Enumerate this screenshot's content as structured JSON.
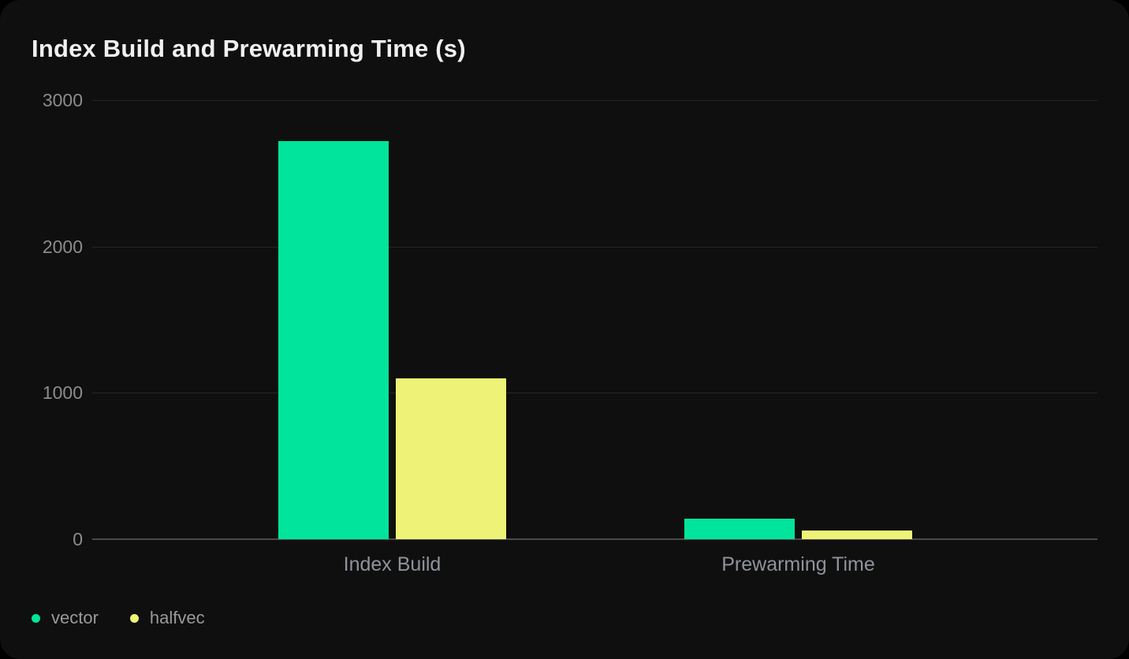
{
  "chart_data": {
    "type": "bar",
    "title": "Index Build and Prewarming Time (s)",
    "categories": [
      "Index Build",
      "Prewarming Time"
    ],
    "series": [
      {
        "name": "vector",
        "color": "#00E49B",
        "values": [
          2720,
          140
        ]
      },
      {
        "name": "halfvec",
        "color": "#EEF276",
        "values": [
          1100,
          60
        ]
      }
    ],
    "xlabel": "",
    "ylabel": "",
    "ylim": [
      0,
      3000
    ],
    "yticks": [
      0,
      1000,
      2000,
      3000
    ],
    "grid": true,
    "legend_position": "bottom-left"
  },
  "colors": {
    "page_background": "#000000",
    "card_background": "#0F0F0F",
    "gridline": "#262626",
    "zero_line": "#4A4A4A",
    "tick_label": "#8C8C8C",
    "category_label": "#8F939B",
    "legend_label": "#9A9A9A",
    "title": "#F0F0F0"
  }
}
